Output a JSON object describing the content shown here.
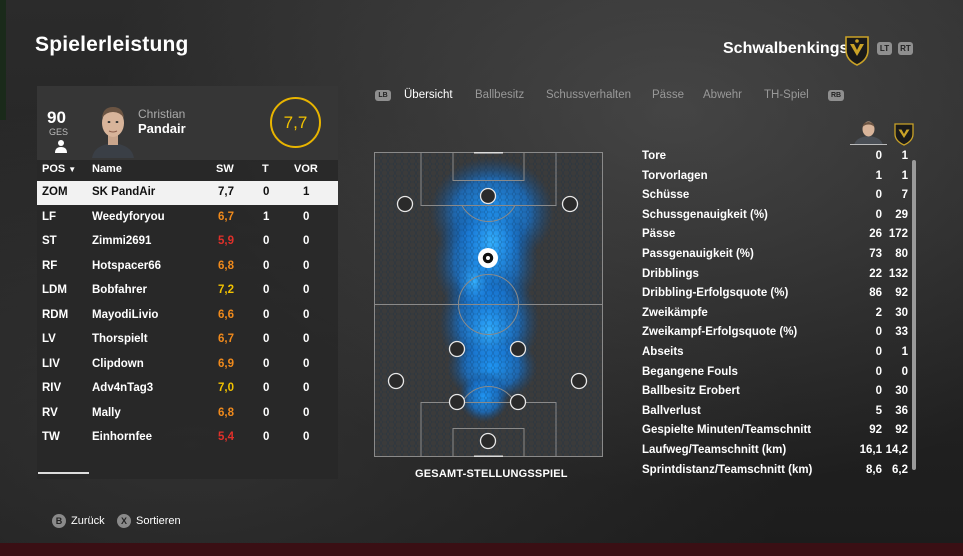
{
  "page_title": "Spielerleistung",
  "team": {
    "name": "Schwalbenkings",
    "crest_icon": "team-crest-icon",
    "lt_label": "LT",
    "rt_label": "RT"
  },
  "player": {
    "overall": "90",
    "overall_label": "GES",
    "first_name": "Christian",
    "last_name": "Pandair",
    "match_rating": "7,7"
  },
  "table": {
    "headers": {
      "pos": "POS",
      "name": "Name",
      "sw": "SW",
      "t": "T",
      "vor": "VOR"
    },
    "rows": [
      {
        "pos": "ZOM",
        "name": "SK PandAir",
        "sw": "7,7",
        "t": "0",
        "vor": "1",
        "color": "#111111"
      },
      {
        "pos": "LF",
        "name": "Weedyforyou",
        "sw": "6,7",
        "t": "1",
        "vor": "0",
        "color": "#f08a1c"
      },
      {
        "pos": "ST",
        "name": "Zimmi2691",
        "sw": "5,9",
        "t": "0",
        "vor": "0",
        "color": "#e0302a"
      },
      {
        "pos": "RF",
        "name": "Hotspacer66",
        "sw": "6,8",
        "t": "0",
        "vor": "0",
        "color": "#f08a1c"
      },
      {
        "pos": "LDM",
        "name": "Bobfahrer",
        "sw": "7,2",
        "t": "0",
        "vor": "0",
        "color": "#f2c200"
      },
      {
        "pos": "RDM",
        "name": "MayodiLivio",
        "sw": "6,6",
        "t": "0",
        "vor": "0",
        "color": "#f08a1c"
      },
      {
        "pos": "LV",
        "name": "Thorspielt",
        "sw": "6,7",
        "t": "0",
        "vor": "0",
        "color": "#f08a1c"
      },
      {
        "pos": "LIV",
        "name": "Clipdown",
        "sw": "6,9",
        "t": "0",
        "vor": "0",
        "color": "#f08a1c"
      },
      {
        "pos": "RIV",
        "name": "Adv4nTag3",
        "sw": "7,0",
        "t": "0",
        "vor": "0",
        "color": "#f2c200"
      },
      {
        "pos": "RV",
        "name": "Mally",
        "sw": "6,8",
        "t": "0",
        "vor": "0",
        "color": "#f08a1c"
      },
      {
        "pos": "TW",
        "name": "Einhornfee",
        "sw": "5,4",
        "t": "0",
        "vor": "0",
        "color": "#e0302a"
      }
    ]
  },
  "tabs": {
    "lb": "LB",
    "rb": "RB",
    "items": [
      "Übersicht",
      "Ballbesitz",
      "Schussverhalten",
      "Pässe",
      "Abwehr",
      "TH-Spiel"
    ],
    "active": 0
  },
  "pitch": {
    "caption": "GESAMT-STELLUNGSSPIEL"
  },
  "stats": [
    {
      "label": "Tore",
      "player": "0",
      "team": "1"
    },
    {
      "label": "Torvorlagen",
      "player": "1",
      "team": "1"
    },
    {
      "label": "Schüsse",
      "player": "0",
      "team": "7"
    },
    {
      "label": "Schussgenauigkeit (%)",
      "player": "0",
      "team": "29"
    },
    {
      "label": "Pässe",
      "player": "26",
      "team": "172"
    },
    {
      "label": "Passgenauigkeit (%)",
      "player": "73",
      "team": "80"
    },
    {
      "label": "Dribblings",
      "player": "22",
      "team": "132"
    },
    {
      "label": "Dribbling-Erfolgsquote (%)",
      "player": "86",
      "team": "92"
    },
    {
      "label": "Zweikämpfe",
      "player": "2",
      "team": "30"
    },
    {
      "label": "Zweikampf-Erfolgsquote (%)",
      "player": "0",
      "team": "33"
    },
    {
      "label": "Abseits",
      "player": "0",
      "team": "1"
    },
    {
      "label": "Begangene Fouls",
      "player": "0",
      "team": "0"
    },
    {
      "label": "Ballbesitz Erobert",
      "player": "0",
      "team": "30"
    },
    {
      "label": "Ballverlust",
      "player": "5",
      "team": "36"
    },
    {
      "label": "Gespielte Minuten/Teamschnitt",
      "player": "92",
      "team": "92"
    },
    {
      "label": "Laufweg/Teamschnitt (km)",
      "player": "16,1",
      "team": "14,2"
    },
    {
      "label": "Sprintdistanz/Teamschnitt (km)",
      "player": "8,6",
      "team": "6,2"
    }
  ],
  "footer": {
    "back": {
      "key": "B",
      "label": "Zurück"
    },
    "sort": {
      "key": "X",
      "label": "Sortieren"
    }
  }
}
